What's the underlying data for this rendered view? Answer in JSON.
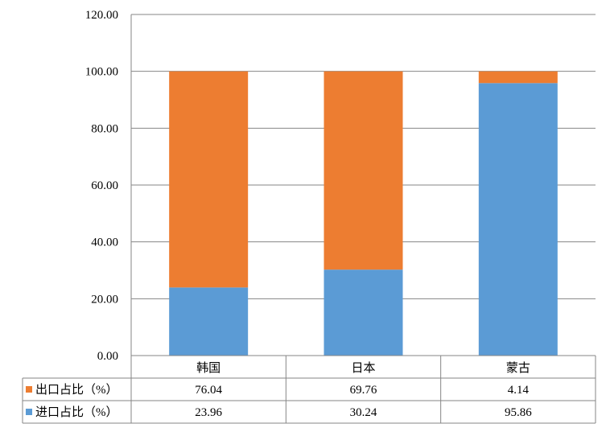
{
  "chart_data": {
    "type": "bar",
    "stacked": true,
    "categories": [
      "韩国",
      "日本",
      "蒙古"
    ],
    "series": [
      {
        "name": "进口占比（%）",
        "values": [
          23.96,
          30.24,
          95.86
        ],
        "color": "#5b9bd5"
      },
      {
        "name": "出口占比（%）",
        "values": [
          76.04,
          69.76,
          4.14
        ],
        "color": "#ed7d31"
      }
    ],
    "ylim": [
      0,
      120
    ],
    "yticks": [
      "0.00",
      "20.00",
      "40.00",
      "60.00",
      "80.00",
      "100.00",
      "120.00"
    ],
    "table_rows": [
      {
        "name": "出口占比（%）",
        "values": [
          "76.04",
          "69.76",
          "4.14"
        ],
        "color": "#ed7d31"
      },
      {
        "name": "进口占比（%）",
        "values": [
          "23.96",
          "30.24",
          "95.86"
        ],
        "color": "#5b9bd5"
      }
    ],
    "grid": true,
    "legend_placement": "data-table-left"
  }
}
